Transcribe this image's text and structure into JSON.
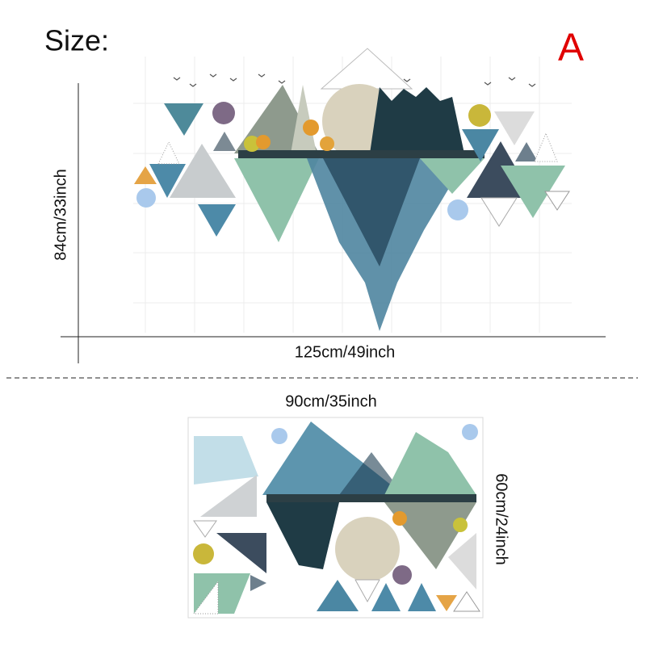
{
  "title": "Size:",
  "variant": "A",
  "large": {
    "height": "84cm/33inch",
    "width": "125cm/49inch"
  },
  "small": {
    "width": "90cm/35inch",
    "height": "60cm/24inch"
  }
}
